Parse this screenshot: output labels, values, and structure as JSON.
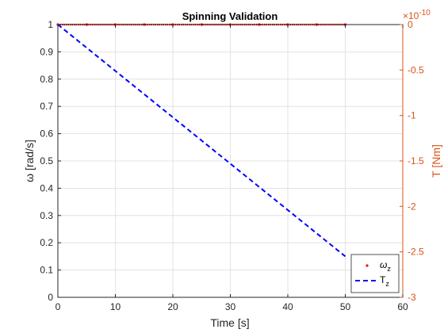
{
  "chart_data": {
    "type": "line",
    "title": "Spinning Validation",
    "xlabel": "Time [s]",
    "ylabel_left": "ω [rad/s]",
    "ylabel_right": "T [Nm]",
    "right_axis_exponent_base": "×10",
    "right_axis_exponent_power": "-10",
    "xlim": [
      0,
      60
    ],
    "ylim_left": [
      0,
      1
    ],
    "ylim_right": [
      -3,
      0
    ],
    "x_ticks": [
      0,
      10,
      20,
      30,
      40,
      50,
      60
    ],
    "y_left_ticks": [
      0,
      0.1,
      0.2,
      0.3,
      0.4,
      0.5,
      0.6,
      0.7,
      0.8,
      0.9,
      1
    ],
    "y_right_ticks": [
      -3,
      -2.5,
      -2,
      -1.5,
      -1,
      -0.5,
      0
    ],
    "grid": true,
    "legend_placement": "bottom-right",
    "right_axis_color": "#d95319",
    "series": [
      {
        "name": "ω",
        "name_sub": "z",
        "axis": "left",
        "style": "red dotted markers",
        "color": "#ff0000",
        "x": [
          0,
          5,
          10,
          15,
          20,
          25,
          30,
          35,
          40,
          45,
          50
        ],
        "values": [
          1,
          1,
          1,
          1,
          1,
          1,
          1,
          1,
          1,
          1,
          1
        ]
      },
      {
        "name": "T",
        "name_sub": "z",
        "axis": "right",
        "style": "blue dashed line",
        "color": "#0000ff",
        "x": [
          0,
          50
        ],
        "values": [
          0,
          -2.55
        ]
      }
    ]
  }
}
